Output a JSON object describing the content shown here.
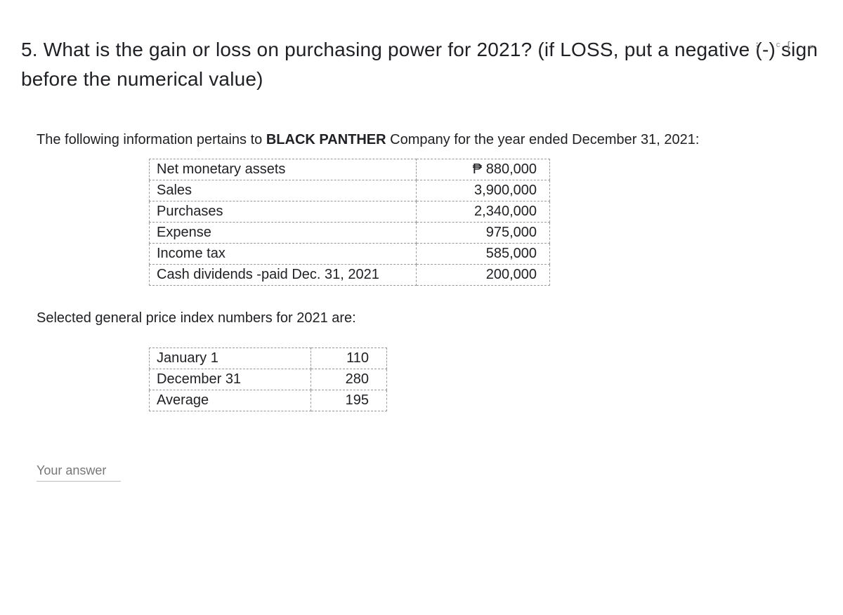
{
  "question": {
    "number": "5.",
    "text_part1": "What is the gain or loss on purchasing power for 2021? (if LOSS, put a negative (-) sign before the numerical value)"
  },
  "intro": {
    "prefix": "The following information pertains to ",
    "company": "BLACK PANTHER",
    "suffix": " Company for the year ended December 31, 2021:"
  },
  "financial_table": {
    "rows": [
      {
        "label": "Net monetary assets",
        "value": "₱   880,000"
      },
      {
        "label": "Sales",
        "value": "3,900,000"
      },
      {
        "label": "Purchases",
        "value": "2,340,000"
      },
      {
        "label": "Expense",
        "value": "975,000"
      },
      {
        "label": "Income tax",
        "value": "585,000"
      },
      {
        "label": "Cash dividends -paid Dec. 31, 2021",
        "value": "200,000"
      }
    ]
  },
  "index_section": {
    "title": "Selected general price index numbers for 2021 are:"
  },
  "index_table": {
    "rows": [
      {
        "label": "January 1",
        "value": "110"
      },
      {
        "label": "December 31",
        "value": "280"
      },
      {
        "label": "Average",
        "value": "195"
      }
    ]
  },
  "answer_input": {
    "placeholder": "Your answer"
  },
  "top_icons": {
    "text": "⁝   ᶜ⌈     ⌕"
  },
  "styling": {
    "background_color": "#ffffff",
    "text_color": "#202124",
    "border_color": "#999999",
    "placeholder_color": "#777777",
    "title_fontsize": 28,
    "body_fontsize": 20,
    "input_fontsize": 18
  }
}
